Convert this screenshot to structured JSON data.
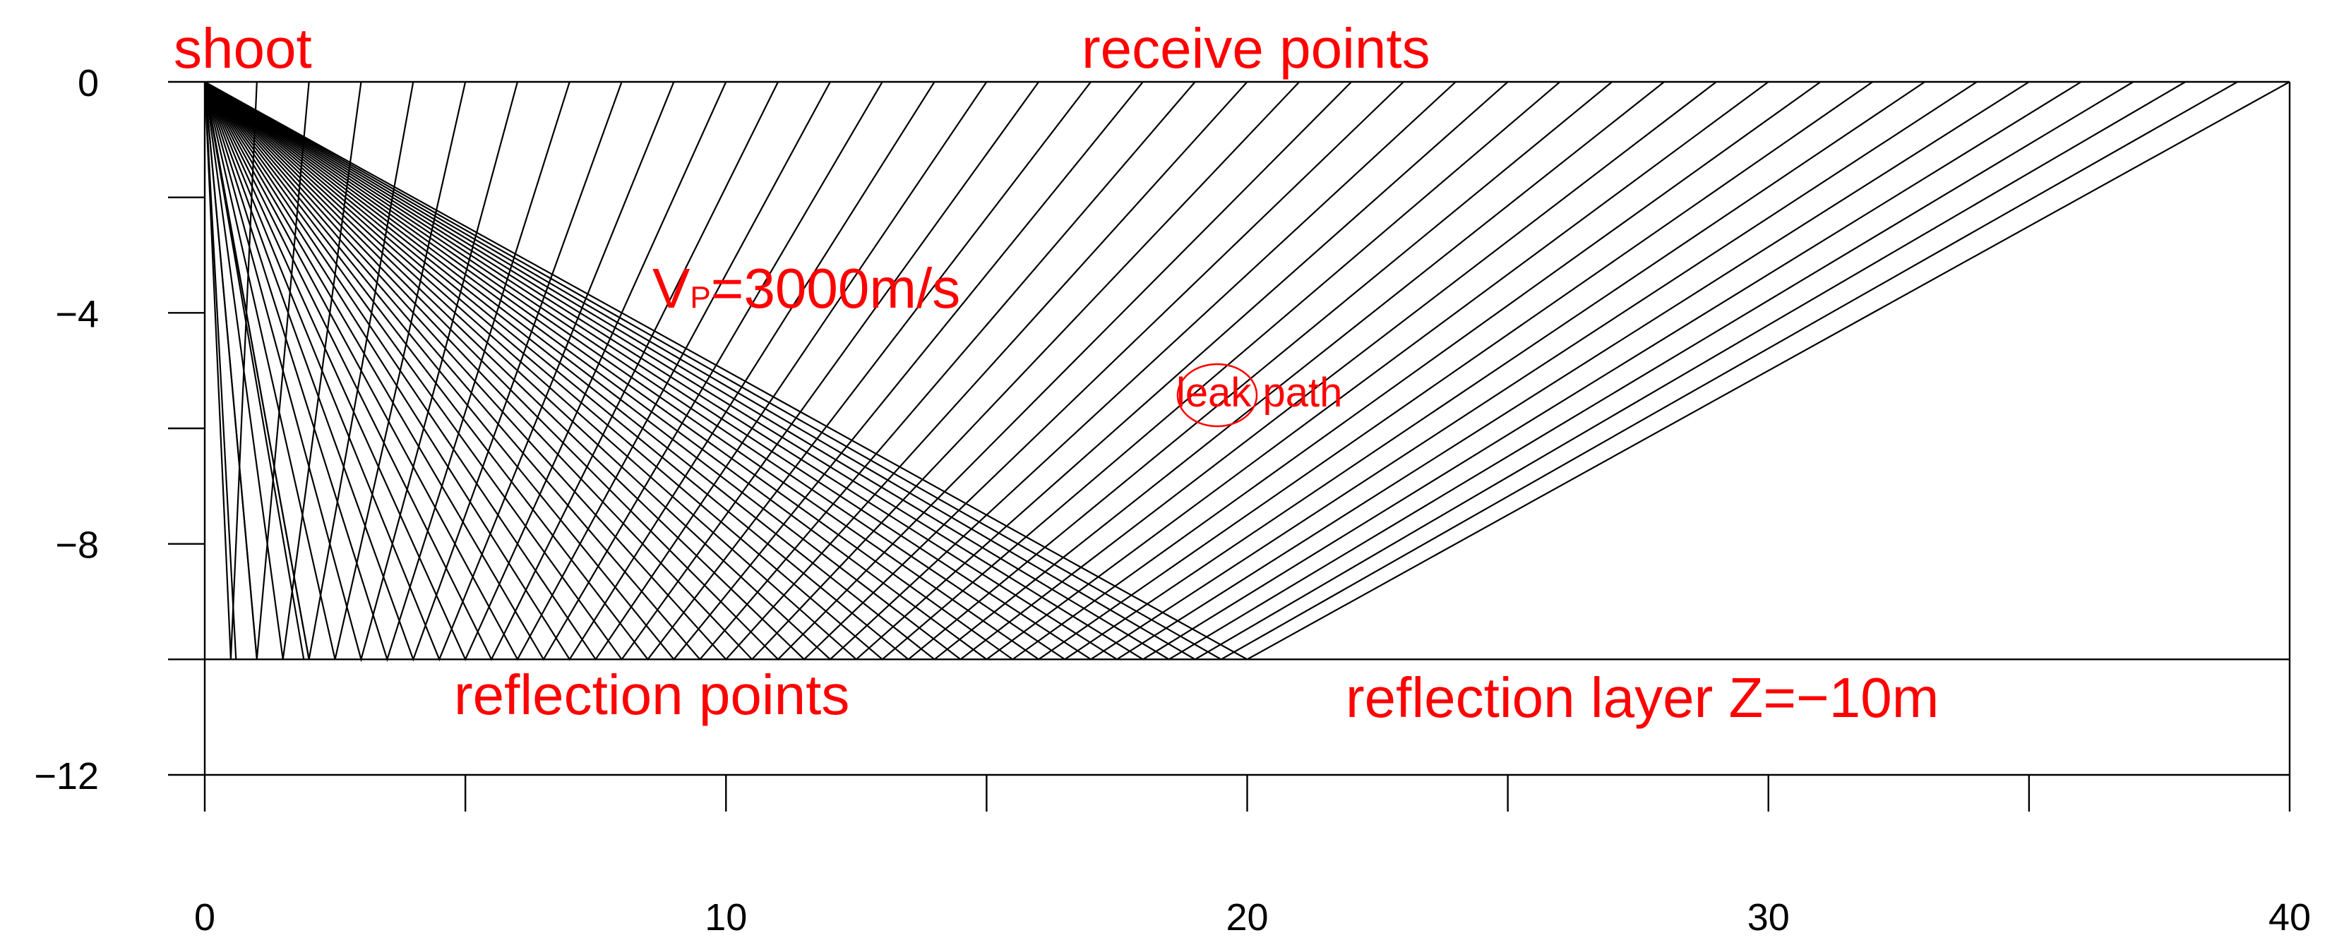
{
  "chart_data": {
    "type": "line",
    "title": "",
    "xlabel": "",
    "ylabel": "",
    "xlim": [
      0,
      40
    ],
    "ylim": [
      -12,
      0
    ],
    "grid": false,
    "legend": "none",
    "x_ticks": [
      0,
      10,
      20,
      30,
      40
    ],
    "x_tick_labels": [
      "0",
      "10",
      "20",
      "30",
      "40"
    ],
    "x_minor_ticks": [
      5,
      15,
      25,
      35
    ],
    "y_ticks": [
      0,
      -4,
      -8,
      -12
    ],
    "y_tick_labels": [
      "0",
      "−4",
      "−8",
      "−12"
    ],
    "y_minor_ticks": [
      -2,
      -6,
      -10
    ],
    "source": {
      "x": 0,
      "y": 0
    },
    "reflector_depth": -10,
    "receiver_spacing": 1,
    "receivers_x": [
      1,
      2,
      3,
      4,
      5,
      6,
      7,
      8,
      9,
      10,
      11,
      12,
      13,
      14,
      15,
      16,
      17,
      18,
      19,
      20,
      21,
      22,
      23,
      24,
      25,
      26,
      27,
      28,
      29,
      30,
      31,
      32,
      33,
      34,
      35,
      36,
      37,
      38,
      39,
      40
    ],
    "direct_arrivals": [
      {
        "end_x": 0.6,
        "end_y": -10
      },
      {
        "end_x": 1.0,
        "end_y": -10
      },
      {
        "end_x": 1.9,
        "end_y": -10
      },
      {
        "end_x": 2.0,
        "end_y": -10
      }
    ],
    "annotation_color": "#ff0000",
    "line_color": "#000000",
    "annotations": {
      "shoot": "shoot",
      "receive": "receive points",
      "velocity_v": "V",
      "velocity_sub": "P",
      "velocity_rest": "=3000m/s",
      "leak": "leak path",
      "reflection_points": "reflection points",
      "reflection_layer": "reflection layer Z=−10m"
    }
  }
}
